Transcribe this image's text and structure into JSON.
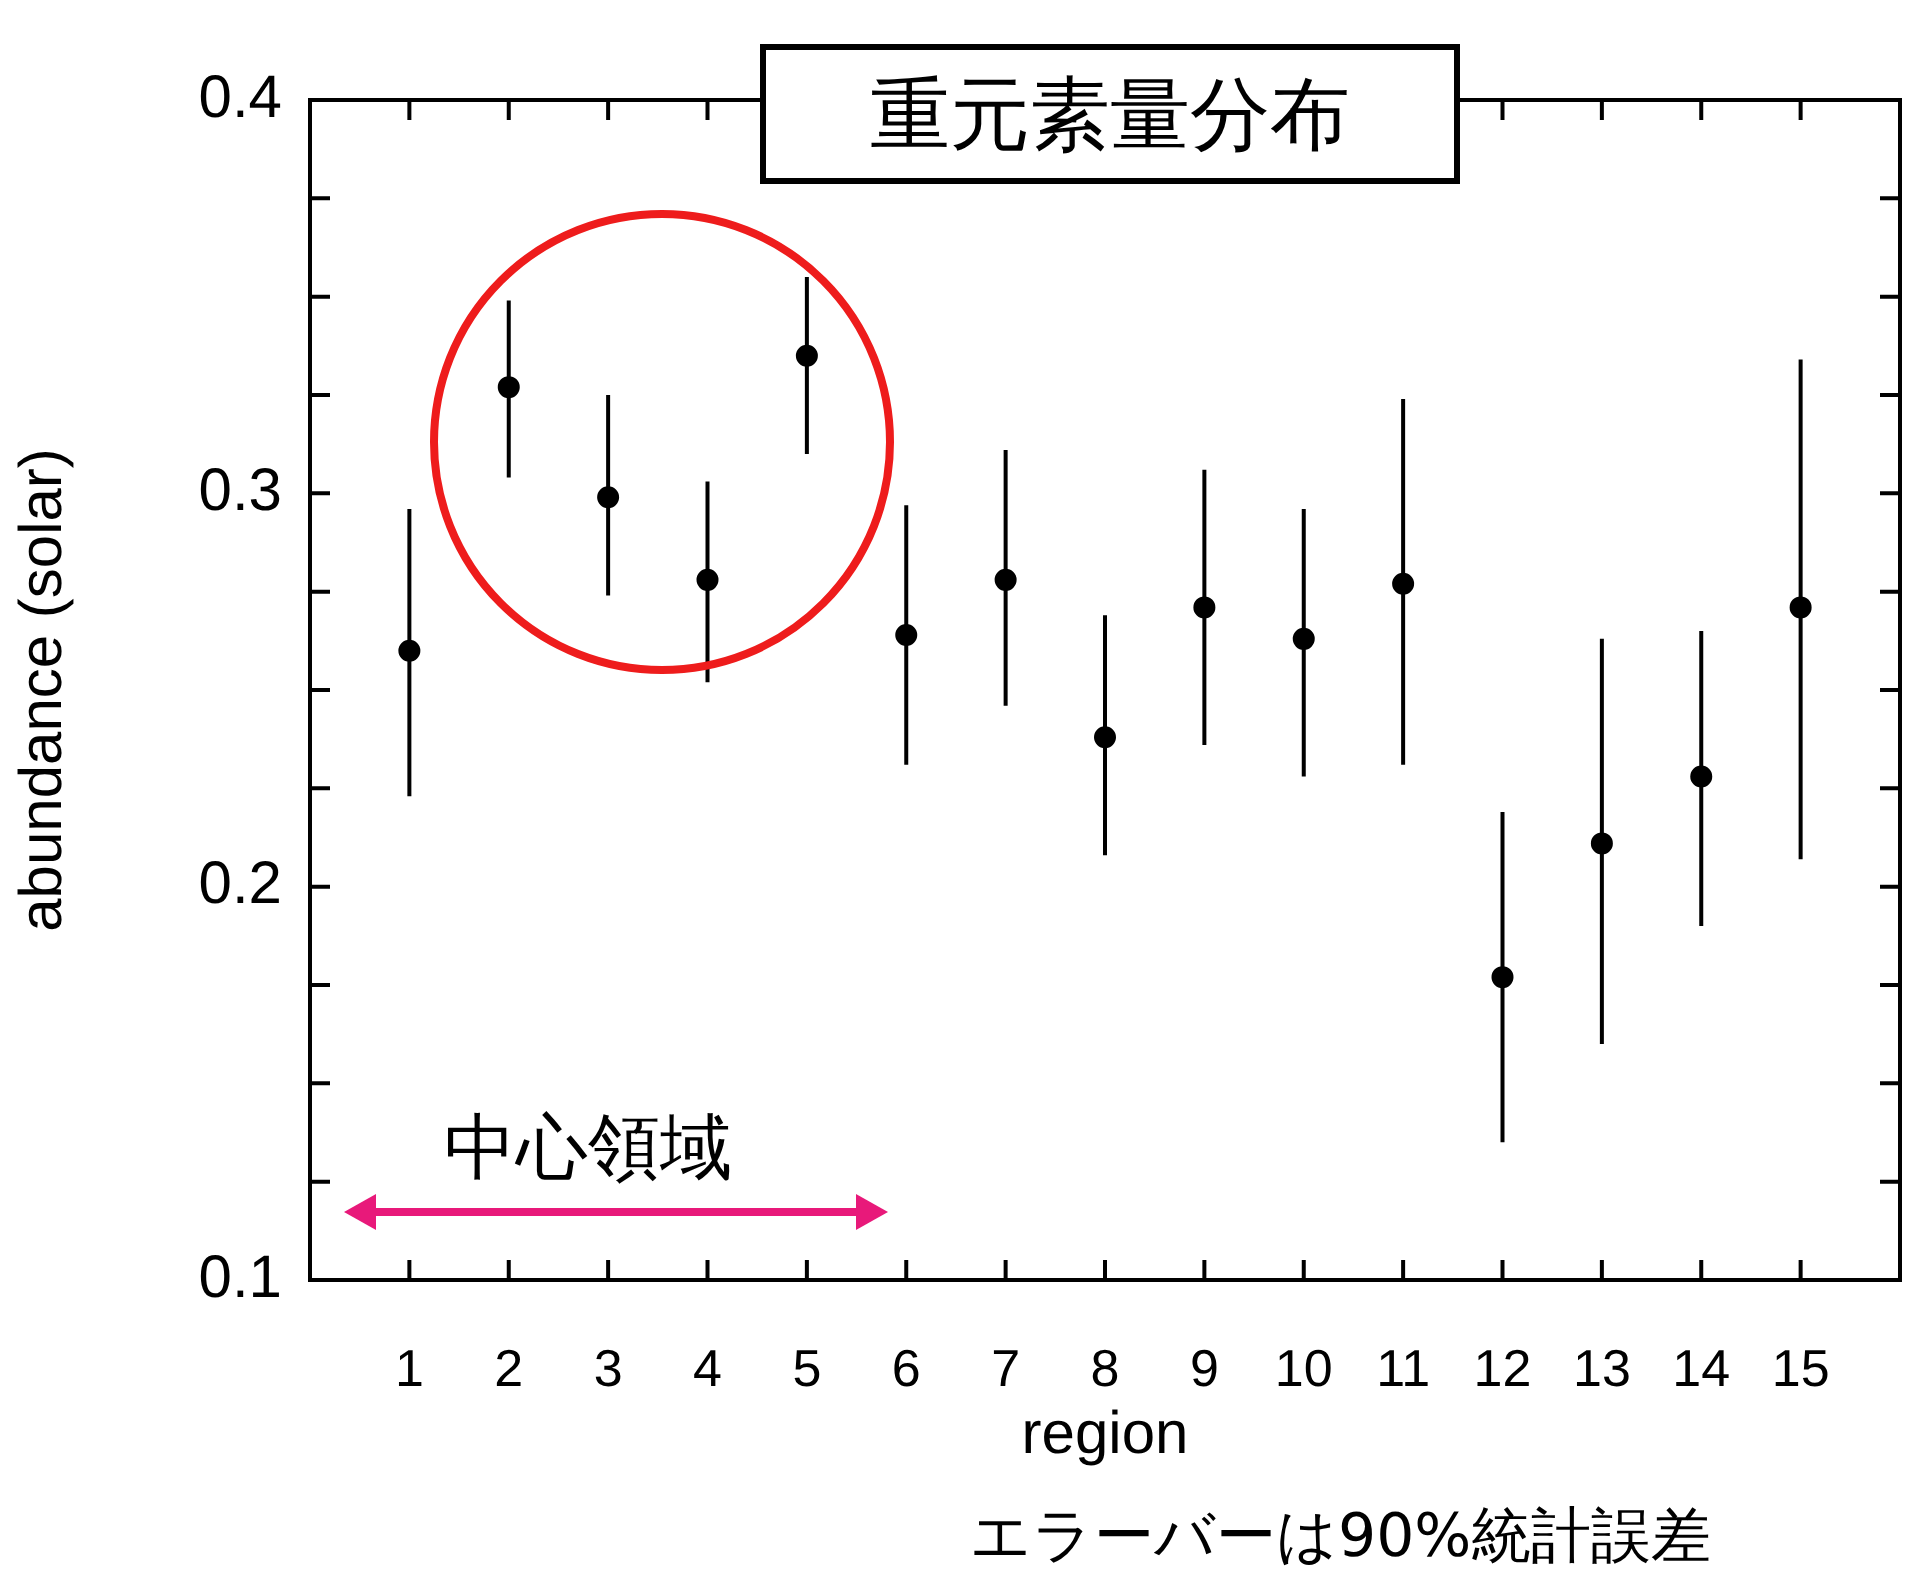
{
  "chart_data": {
    "type": "scatter",
    "title": "重元素量分布",
    "xlabel": "region",
    "ylabel": "abundance (solar)",
    "annotations": [
      "中心領域",
      "エラーバーは90%統計誤差"
    ],
    "x": [
      1,
      2,
      3,
      4,
      5,
      6,
      7,
      8,
      9,
      10,
      11,
      12,
      13,
      14,
      15
    ],
    "series": [
      {
        "color": "#000000",
        "values": [
          0.26,
          0.327,
          0.299,
          0.278,
          0.335,
          0.264,
          0.278,
          0.238,
          0.271,
          0.263,
          0.277,
          0.177,
          0.211,
          0.228,
          0.271
        ],
        "errors": [
          [
            0.223,
            0.296
          ],
          [
            0.304,
            0.349
          ],
          [
            0.274,
            0.325
          ],
          [
            0.252,
            0.303
          ],
          [
            0.31,
            0.355
          ],
          [
            0.231,
            0.297
          ],
          [
            0.246,
            0.311
          ],
          [
            0.208,
            0.269
          ],
          [
            0.236,
            0.306
          ],
          [
            0.228,
            0.296
          ],
          [
            0.231,
            0.324
          ],
          [
            0.135,
            0.219
          ],
          [
            0.16,
            0.263
          ],
          [
            0.19,
            0.265
          ],
          [
            0.207,
            0.334
          ]
        ]
      }
    ],
    "xlim": [
      0,
      16
    ],
    "xticks": [
      1,
      2,
      3,
      4,
      5,
      6,
      7,
      8,
      9,
      10,
      11,
      12,
      13,
      14,
      15
    ],
    "ylim": [
      0.1,
      0.4
    ],
    "yticks": [
      0.1,
      {
        "value": 0.125,
        "label": null
      },
      {
        "value": 0.15,
        "label": null
      },
      {
        "value": 0.175,
        "label": null
      },
      0.2,
      {
        "value": 0.225,
        "label": null
      },
      {
        "value": 0.25,
        "label": null
      },
      {
        "value": 0.275,
        "label": null
      },
      0.3,
      {
        "value": 0.325,
        "label": null
      },
      {
        "value": 0.35,
        "label": null
      },
      {
        "value": 0.375,
        "label": null
      },
      0.4
    ],
    "grid": false,
    "legend": false,
    "marker": "circle"
  }
}
